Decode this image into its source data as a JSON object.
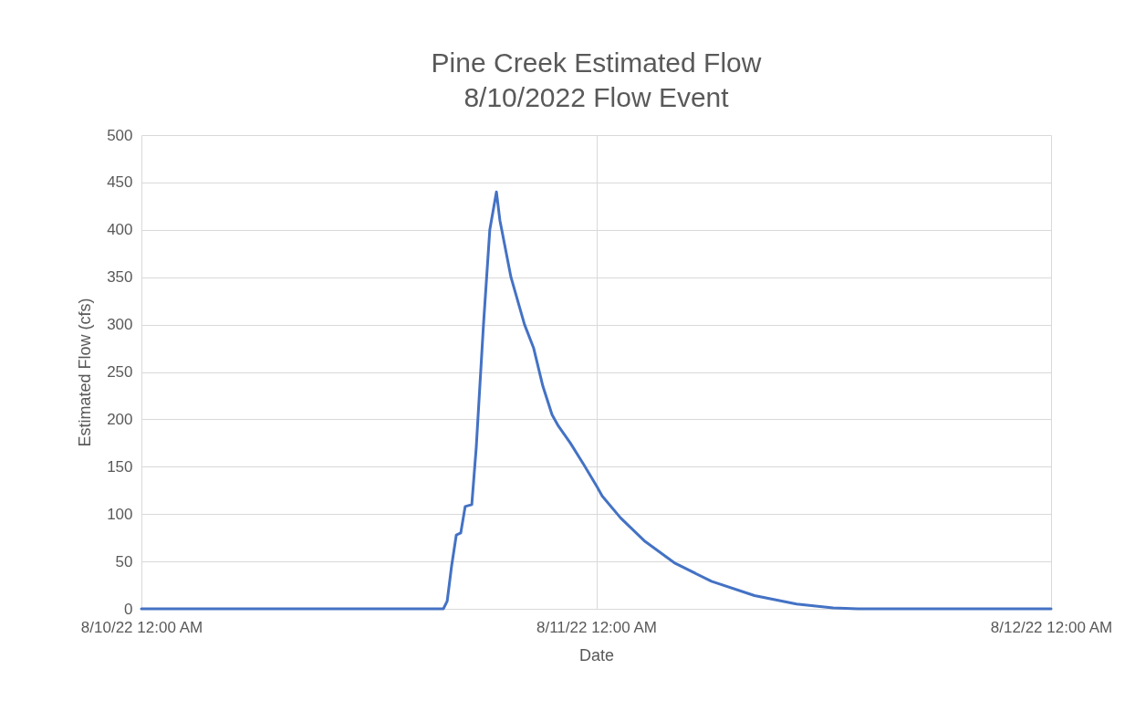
{
  "chart_data": {
    "type": "line",
    "title": "Pine Creek Estimated Flow",
    "subtitle": "8/10/2022 Flow Event",
    "xlabel": "Date",
    "ylabel": "Estimated Flow (cfs)",
    "x": [
      "2022-08-10T00:00",
      "2022-08-10T15:56",
      "2022-08-10T16:08",
      "2022-08-10T16:22",
      "2022-08-10T16:37",
      "2022-08-10T16:51",
      "2022-08-10T17:05",
      "2022-08-10T17:26",
      "2022-08-10T17:40",
      "2022-08-10T18:03",
      "2022-08-10T18:23",
      "2022-08-10T18:44",
      "2022-08-10T18:55",
      "2022-08-10T19:30",
      "2022-08-10T20:13",
      "2022-08-10T20:42",
      "2022-08-10T21:11",
      "2022-08-10T21:40",
      "2022-08-10T22:00",
      "2022-08-10T22:38",
      "2022-08-10T23:21",
      "2022-08-11T00:02",
      "2022-08-11T00:19",
      "2022-08-11T01:17",
      "2022-08-11T02:35",
      "2022-08-11T04:10",
      "2022-08-11T06:05",
      "2022-08-11T08:21",
      "2022-08-11T10:34",
      "2022-08-11T12:30",
      "2022-08-11T13:48",
      "2022-08-12T00:00"
    ],
    "series": [
      {
        "color": "#4472c4",
        "values": [
          0,
          0,
          8,
          45,
          78,
          80,
          108,
          110,
          170,
          300,
          400,
          440,
          410,
          350,
          300,
          275,
          235,
          205,
          193,
          175,
          152,
          129,
          119,
          96,
          71,
          48,
          29,
          14,
          5,
          1,
          0,
          0
        ]
      }
    ],
    "xlim": [
      "2022-08-10T00:00",
      "2022-08-12T00:00"
    ],
    "xticks": [
      {
        "value": "2022-08-10T00:00",
        "label": "8/10/22 12:00 AM"
      },
      {
        "value": "2022-08-11T00:00",
        "label": "8/11/22 12:00 AM"
      },
      {
        "value": "2022-08-12T00:00",
        "label": "8/12/22 12:00 AM"
      }
    ],
    "ylim": [
      0,
      500
    ],
    "yticks": [
      0,
      50,
      100,
      150,
      200,
      250,
      300,
      350,
      400,
      450,
      500
    ],
    "grid": true,
    "marker": "none",
    "line_style": "solid"
  }
}
